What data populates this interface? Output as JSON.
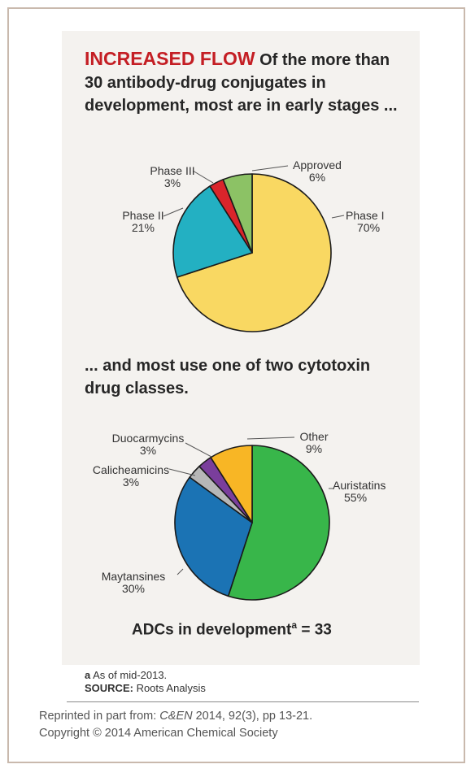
{
  "headline": {
    "lead": "INCREASED FLOW",
    "text": " Of the more than 30 antibody-drug conjugates in development, most are in early stages ..."
  },
  "subhead": "... and most use one of two cytotoxin drug classes.",
  "chart_data": [
    {
      "type": "pie",
      "start_angle_deg": 0,
      "direction": "clockwise",
      "slices": [
        {
          "label": "Phase I",
          "value": 70,
          "value_label": "70%",
          "color": "#f9d862"
        },
        {
          "label": "Phase II",
          "value": 21,
          "value_label": "21%",
          "color": "#23b0c2"
        },
        {
          "label": "Phase III",
          "value": 3,
          "value_label": "3%",
          "color": "#d9252b"
        },
        {
          "label": "Approved",
          "value": 6,
          "value_label": "6%",
          "color": "#8cc265"
        }
      ]
    },
    {
      "type": "pie",
      "start_angle_deg": 0,
      "direction": "clockwise",
      "slices": [
        {
          "label": "Auristatins",
          "value": 55,
          "value_label": "55%",
          "color": "#38b64a"
        },
        {
          "label": "Maytansines",
          "value": 30,
          "value_label": "30%",
          "color": "#1b73b4"
        },
        {
          "label": "Calicheamicins",
          "value": 3,
          "value_label": "3%",
          "color": "#b7b7b7"
        },
        {
          "label": "Duocarmycins",
          "value": 3,
          "value_label": "3%",
          "color": "#7a3e9c"
        },
        {
          "label": "Other",
          "value": 9,
          "value_label": "9%",
          "color": "#f8b625"
        }
      ]
    }
  ],
  "summary": {
    "text": "ADCs in development",
    "sup": "a",
    "value": " = 33"
  },
  "footnote": {
    "marker": "a",
    "text": " As of mid-2013."
  },
  "source": {
    "label": "SOURCE:",
    "text": " Roots Analysis"
  },
  "credit": {
    "prefix": "Reprinted in part from:  ",
    "journal": "C&EN",
    "citation": " 2014, 92(3), pp 13-21.",
    "copyright": "Copyright © 2014 American Chemical Society"
  }
}
